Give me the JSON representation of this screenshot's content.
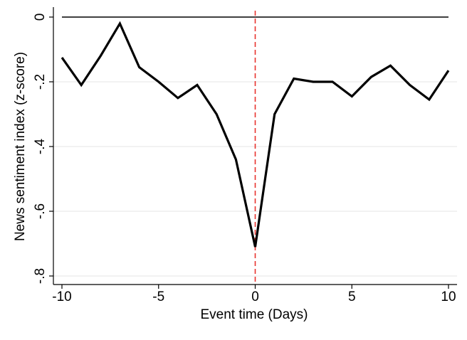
{
  "chart_data": {
    "type": "line",
    "title": "",
    "xlabel": "Event time (Days)",
    "ylabel": "News sentiment index (z-score)",
    "xlim": [
      -10,
      10
    ],
    "ylim": [
      -0.8,
      0
    ],
    "x_ticks": [
      -10,
      -5,
      0,
      5,
      10
    ],
    "x_tick_labels": [
      "-10",
      "-5",
      "0",
      "5",
      "10"
    ],
    "y_ticks": [
      0,
      -0.2,
      -0.4,
      -0.6,
      -0.8
    ],
    "y_tick_labels": [
      "0",
      "-.2",
      "-.4",
      "-.6",
      "-.8"
    ],
    "grid": "horizontal",
    "reference_lines": {
      "horizontal_at_y": 0,
      "vertical_at_x": 0
    },
    "colors": {
      "series": "#000000",
      "event_line": "#e8322d",
      "zero_line": "#000000",
      "grid": "#e6e6e6",
      "axis": "#000000"
    },
    "series": [
      {
        "x": [
          -10,
          -9,
          -8,
          -7,
          -6,
          -5,
          -4,
          -3,
          -2,
          -1,
          0,
          1,
          2,
          3,
          4,
          5,
          6,
          7,
          8,
          9,
          10
        ],
        "values": [
          -0.125,
          -0.21,
          -0.12,
          -0.02,
          -0.155,
          -0.2,
          -0.25,
          -0.21,
          -0.3,
          -0.44,
          -0.71,
          -0.3,
          -0.19,
          -0.2,
          -0.2,
          -0.245,
          -0.185,
          -0.15,
          -0.21,
          -0.255,
          -0.165
        ]
      }
    ]
  }
}
